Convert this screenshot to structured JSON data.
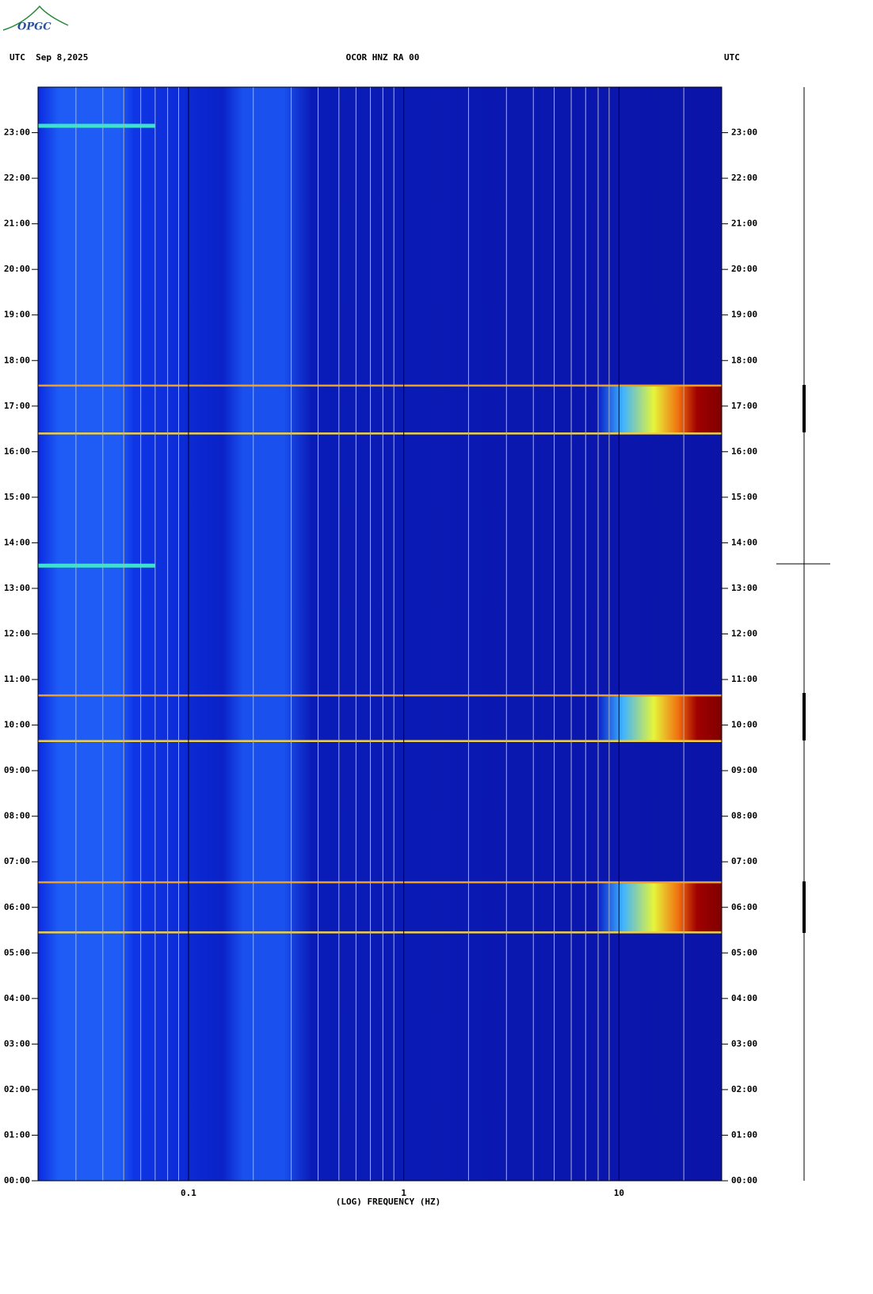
{
  "chart_data": {
    "type": "spectrogram",
    "logo": "OPGC",
    "title_left": "UTC  Sep 8,2025",
    "title": "OCOR HNZ RA 00",
    "title_right": "UTC",
    "xlabel": "(LOG) FREQUENCY (HZ)",
    "xscale": "log",
    "xlim": [
      0.02,
      30
    ],
    "xticks": [
      0.1,
      1,
      10
    ],
    "xminor": [
      0.03,
      0.04,
      0.05,
      0.06,
      0.07,
      0.08,
      0.09,
      0.2,
      0.3,
      0.4,
      0.5,
      0.6,
      0.7,
      0.8,
      0.9,
      2,
      3,
      4,
      5,
      6,
      7,
      8,
      9,
      20
    ],
    "ylim": [
      0,
      24
    ],
    "yticks": [
      {
        "value": 0,
        "label": "00:00"
      },
      {
        "value": 1,
        "label": "01:00"
      },
      {
        "value": 2,
        "label": "02:00"
      },
      {
        "value": 3,
        "label": "03:00"
      },
      {
        "value": 4,
        "label": "04:00"
      },
      {
        "value": 5,
        "label": "05:00"
      },
      {
        "value": 6,
        "label": "06:00"
      },
      {
        "value": 7,
        "label": "07:00"
      },
      {
        "value": 8,
        "label": "08:00"
      },
      {
        "value": 9,
        "label": "09:00"
      },
      {
        "value": 10,
        "label": "10:00"
      },
      {
        "value": 11,
        "label": "11:00"
      },
      {
        "value": 12,
        "label": "12:00"
      },
      {
        "value": 13,
        "label": "13:00"
      },
      {
        "value": 14,
        "label": "14:00"
      },
      {
        "value": 15,
        "label": "15:00"
      },
      {
        "value": 16,
        "label": "16:00"
      },
      {
        "value": 17,
        "label": "17:00"
      },
      {
        "value": 18,
        "label": "18:00"
      },
      {
        "value": 19,
        "label": "19:00"
      },
      {
        "value": 20,
        "label": "20:00"
      },
      {
        "value": 21,
        "label": "21:00"
      },
      {
        "value": 22,
        "label": "22:00"
      },
      {
        "value": 23,
        "label": "23:00"
      }
    ],
    "events": [
      {
        "start": 5.45,
        "end": 6.55
      },
      {
        "start": 9.65,
        "end": 10.65
      },
      {
        "start": 16.4,
        "end": 17.45
      }
    ],
    "lines": [
      13.5,
      23.15
    ]
  }
}
